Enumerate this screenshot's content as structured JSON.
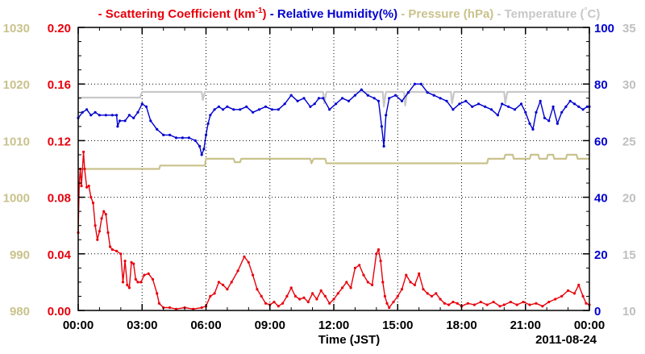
{
  "chart_data": {
    "type": "line",
    "title_parts": [
      {
        "text": "- Scattering Coefficient (km",
        "color": "#e8000b"
      },
      {
        "text": "-1",
        "color": "#e8000b",
        "sup": true
      },
      {
        "text": ") ",
        "color": "#e8000b"
      },
      {
        "text": "- Relative Humidity(%) ",
        "color": "#0000d0"
      },
      {
        "text": "- Pressure (hPa) ",
        "color": "#c9c28c"
      },
      {
        "text": "- Temperature (",
        "color": "#c8c8c8"
      },
      {
        "text": "°",
        "color": "#c8c8c8",
        "sup": true
      },
      {
        "text": "C)",
        "color": "#c8c8c8"
      }
    ],
    "xlabel": "Time (JST)",
    "date_label": "2011-08-24",
    "x_ticks": [
      "00:00",
      "03:00",
      "06:00",
      "09:00",
      "12:00",
      "15:00",
      "18:00",
      "21:00",
      "00:00"
    ],
    "xlim_hours": [
      0,
      24
    ],
    "grid": true,
    "axes": {
      "pressure": {
        "ticks": [
          "980",
          "990",
          "1000",
          "1010",
          "1020",
          "1030"
        ],
        "range": [
          980,
          1030
        ],
        "color": "#c9c28c"
      },
      "scattering": {
        "ticks": [
          "0.00",
          "0.04",
          "0.08",
          "0.12",
          "0.16",
          "0.20"
        ],
        "range": [
          0,
          0.2
        ],
        "color": "#e8000b"
      },
      "humidity": {
        "ticks": [
          "0",
          "20",
          "40",
          "60",
          "80",
          "100"
        ],
        "range": [
          0,
          100
        ],
        "color": "#0000d0"
      },
      "temperature": {
        "ticks": [
          "10",
          "15",
          "20",
          "25",
          "30",
          "35"
        ],
        "range": [
          10,
          35
        ],
        "color": "#bfbfbf"
      }
    },
    "series": [
      {
        "name": "Temperature (°C)",
        "axis": "temperature",
        "color": "#c8c8c8",
        "markers": false,
        "points": [
          [
            0,
            28.8
          ],
          [
            2.9,
            28.8
          ],
          [
            3.0,
            29.3
          ],
          [
            5.8,
            29.3
          ],
          [
            5.85,
            28.6
          ],
          [
            5.95,
            29.3
          ],
          [
            11.5,
            29.3
          ],
          [
            11.55,
            28.3
          ],
          [
            11.65,
            29.3
          ],
          [
            14.3,
            29.3
          ],
          [
            14.35,
            28.0
          ],
          [
            14.45,
            29.3
          ],
          [
            15.3,
            29.3
          ],
          [
            15.35,
            28.1
          ],
          [
            15.45,
            29.3
          ],
          [
            17.5,
            29.3
          ],
          [
            17.55,
            28.3
          ],
          [
            17.65,
            29.3
          ],
          [
            20.0,
            29.3
          ],
          [
            20.05,
            28.3
          ],
          [
            20.15,
            29.3
          ],
          [
            24,
            29.3
          ]
        ]
      },
      {
        "name": "Pressure (hPa)",
        "axis": "pressure",
        "color": "#c9c28c",
        "markers": false,
        "points": [
          [
            0,
            1005
          ],
          [
            3.8,
            1005
          ],
          [
            3.85,
            1005.6
          ],
          [
            5.95,
            1005.6
          ],
          [
            6.0,
            1006.8
          ],
          [
            7.3,
            1006.8
          ],
          [
            7.35,
            1006.2
          ],
          [
            7.6,
            1006.2
          ],
          [
            7.65,
            1006.8
          ],
          [
            10.9,
            1006.8
          ],
          [
            10.95,
            1006.0
          ],
          [
            11.05,
            1006.8
          ],
          [
            11.6,
            1006.8
          ],
          [
            11.65,
            1006.0
          ],
          [
            19.2,
            1006.0
          ],
          [
            19.25,
            1006.8
          ],
          [
            20.0,
            1006.8
          ],
          [
            20.05,
            1007.5
          ],
          [
            20.4,
            1007.5
          ],
          [
            20.45,
            1006.8
          ],
          [
            21.2,
            1006.8
          ],
          [
            21.25,
            1007.5
          ],
          [
            21.6,
            1007.5
          ],
          [
            21.65,
            1006.8
          ],
          [
            22.0,
            1006.8
          ],
          [
            22.05,
            1007.5
          ],
          [
            22.3,
            1007.5
          ],
          [
            22.35,
            1006.8
          ],
          [
            22.9,
            1006.8
          ],
          [
            22.95,
            1007.5
          ],
          [
            23.4,
            1007.5
          ],
          [
            23.45,
            1006.8
          ],
          [
            24,
            1006.8
          ]
        ]
      },
      {
        "name": "Relative Humidity(%)",
        "axis": "humidity",
        "color": "#0000d0",
        "markers": true,
        "points": [
          [
            0,
            68
          ],
          [
            0.2,
            70
          ],
          [
            0.4,
            71
          ],
          [
            0.6,
            69
          ],
          [
            0.8,
            70
          ],
          [
            1.0,
            69
          ],
          [
            1.3,
            69
          ],
          [
            1.6,
            69
          ],
          [
            1.8,
            69
          ],
          [
            1.85,
            65
          ],
          [
            1.95,
            67
          ],
          [
            2.2,
            67
          ],
          [
            2.4,
            69
          ],
          [
            2.6,
            68
          ],
          [
            2.8,
            70
          ],
          [
            3.0,
            73
          ],
          [
            3.2,
            72
          ],
          [
            3.4,
            67
          ],
          [
            3.7,
            64
          ],
          [
            4.0,
            62
          ],
          [
            4.3,
            62
          ],
          [
            4.6,
            61
          ],
          [
            4.9,
            61
          ],
          [
            5.2,
            61
          ],
          [
            5.5,
            60
          ],
          [
            5.7,
            58
          ],
          [
            5.8,
            55
          ],
          [
            5.9,
            57
          ],
          [
            6.0,
            62
          ],
          [
            6.1,
            66
          ],
          [
            6.2,
            69
          ],
          [
            6.4,
            71
          ],
          [
            6.6,
            72
          ],
          [
            6.8,
            71
          ],
          [
            7.0,
            72
          ],
          [
            7.3,
            71
          ],
          [
            7.6,
            71
          ],
          [
            7.9,
            72
          ],
          [
            8.2,
            70
          ],
          [
            8.5,
            71
          ],
          [
            8.8,
            72
          ],
          [
            9.1,
            71
          ],
          [
            9.4,
            71
          ],
          [
            9.7,
            73
          ],
          [
            10.0,
            76
          ],
          [
            10.3,
            74
          ],
          [
            10.6,
            75
          ],
          [
            10.9,
            72
          ],
          [
            11.1,
            73
          ],
          [
            11.3,
            75
          ],
          [
            11.5,
            75
          ],
          [
            11.8,
            71
          ],
          [
            12.1,
            73
          ],
          [
            12.4,
            75
          ],
          [
            12.7,
            74
          ],
          [
            13.0,
            76
          ],
          [
            13.3,
            78
          ],
          [
            13.6,
            76
          ],
          [
            13.9,
            75
          ],
          [
            14.1,
            74
          ],
          [
            14.25,
            65
          ],
          [
            14.35,
            58
          ],
          [
            14.45,
            69
          ],
          [
            14.6,
            75
          ],
          [
            14.9,
            76
          ],
          [
            15.2,
            74
          ],
          [
            15.5,
            77
          ],
          [
            15.8,
            80
          ],
          [
            16.1,
            80
          ],
          [
            16.4,
            77
          ],
          [
            16.7,
            76
          ],
          [
            17.0,
            75
          ],
          [
            17.3,
            74
          ],
          [
            17.6,
            71
          ],
          [
            17.9,
            73
          ],
          [
            18.2,
            74
          ],
          [
            18.5,
            72
          ],
          [
            18.8,
            73
          ],
          [
            19.1,
            72
          ],
          [
            19.4,
            71
          ],
          [
            19.7,
            69
          ],
          [
            19.9,
            73
          ],
          [
            20.2,
            72
          ],
          [
            20.5,
            71
          ],
          [
            20.8,
            73
          ],
          [
            21.0,
            70
          ],
          [
            21.2,
            66
          ],
          [
            21.35,
            64
          ],
          [
            21.5,
            70
          ],
          [
            21.7,
            74
          ],
          [
            21.9,
            68
          ],
          [
            22.1,
            67
          ],
          [
            22.3,
            72
          ],
          [
            22.5,
            66
          ],
          [
            22.7,
            70
          ],
          [
            22.9,
            72
          ],
          [
            23.1,
            74
          ],
          [
            23.3,
            73
          ],
          [
            23.5,
            72
          ],
          [
            23.7,
            71
          ],
          [
            23.9,
            72
          ],
          [
            24,
            72
          ]
        ]
      },
      {
        "name": "Scattering Coefficient (km-1)",
        "axis": "scattering",
        "color": "#e8000b",
        "markers": true,
        "points": [
          [
            0,
            0.055
          ],
          [
            0.05,
            0.09
          ],
          [
            0.1,
            0.1
          ],
          [
            0.15,
            0.088
          ],
          [
            0.25,
            0.112
          ],
          [
            0.3,
            0.1
          ],
          [
            0.4,
            0.087
          ],
          [
            0.5,
            0.088
          ],
          [
            0.6,
            0.08
          ],
          [
            0.7,
            0.076
          ],
          [
            0.8,
            0.06
          ],
          [
            0.9,
            0.05
          ],
          [
            1.0,
            0.056
          ],
          [
            1.1,
            0.065
          ],
          [
            1.2,
            0.07
          ],
          [
            1.3,
            0.068
          ],
          [
            1.4,
            0.055
          ],
          [
            1.5,
            0.045
          ],
          [
            1.6,
            0.043
          ],
          [
            1.8,
            0.042
          ],
          [
            2.0,
            0.04
          ],
          [
            2.1,
            0.02
          ],
          [
            2.2,
            0.035
          ],
          [
            2.3,
            0.018
          ],
          [
            2.4,
            0.016
          ],
          [
            2.5,
            0.034
          ],
          [
            2.6,
            0.033
          ],
          [
            2.7,
            0.022
          ],
          [
            2.8,
            0.02
          ],
          [
            2.95,
            0.02
          ],
          [
            3.1,
            0.025
          ],
          [
            3.3,
            0.026
          ],
          [
            3.5,
            0.022
          ],
          [
            3.7,
            0.012
          ],
          [
            3.8,
            0.005
          ],
          [
            4.0,
            0.002
          ],
          [
            4.3,
            0.002
          ],
          [
            4.6,
            0.001
          ],
          [
            5.0,
            0.002
          ],
          [
            5.4,
            0.001
          ],
          [
            5.8,
            0.002
          ],
          [
            6.0,
            0.003
          ],
          [
            6.2,
            0.01
          ],
          [
            6.4,
            0.012
          ],
          [
            6.6,
            0.02
          ],
          [
            6.8,
            0.018
          ],
          [
            7.0,
            0.015
          ],
          [
            7.2,
            0.02
          ],
          [
            7.5,
            0.028
          ],
          [
            7.8,
            0.038
          ],
          [
            8.0,
            0.034
          ],
          [
            8.2,
            0.025
          ],
          [
            8.4,
            0.015
          ],
          [
            8.6,
            0.01
          ],
          [
            8.8,
            0.005
          ],
          [
            9.0,
            0.004
          ],
          [
            9.2,
            0.006
          ],
          [
            9.4,
            0.003
          ],
          [
            9.6,
            0.005
          ],
          [
            9.8,
            0.01
          ],
          [
            10.0,
            0.016
          ],
          [
            10.2,
            0.01
          ],
          [
            10.4,
            0.008
          ],
          [
            10.6,
            0.009
          ],
          [
            10.8,
            0.006
          ],
          [
            11.0,
            0.012
          ],
          [
            11.2,
            0.008
          ],
          [
            11.4,
            0.014
          ],
          [
            11.6,
            0.01
          ],
          [
            11.8,
            0.005
          ],
          [
            12.0,
            0.008
          ],
          [
            12.2,
            0.012
          ],
          [
            12.4,
            0.016
          ],
          [
            12.6,
            0.02
          ],
          [
            12.8,
            0.016
          ],
          [
            13.0,
            0.03
          ],
          [
            13.2,
            0.032
          ],
          [
            13.4,
            0.025
          ],
          [
            13.6,
            0.02
          ],
          [
            13.8,
            0.018
          ],
          [
            14.0,
            0.04
          ],
          [
            14.1,
            0.043
          ],
          [
            14.2,
            0.035
          ],
          [
            14.3,
            0.02
          ],
          [
            14.4,
            0.01
          ],
          [
            14.5,
            0.005
          ],
          [
            14.6,
            0.002
          ],
          [
            14.8,
            0.006
          ],
          [
            15.0,
            0.01
          ],
          [
            15.2,
            0.015
          ],
          [
            15.4,
            0.025
          ],
          [
            15.6,
            0.02
          ],
          [
            15.8,
            0.018
          ],
          [
            16.0,
            0.026
          ],
          [
            16.2,
            0.015
          ],
          [
            16.4,
            0.012
          ],
          [
            16.6,
            0.01
          ],
          [
            16.8,
            0.012
          ],
          [
            17.0,
            0.008
          ],
          [
            17.2,
            0.005
          ],
          [
            17.4,
            0.004
          ],
          [
            17.6,
            0.006
          ],
          [
            17.8,
            0.005
          ],
          [
            18.0,
            0.003
          ],
          [
            18.3,
            0.005
          ],
          [
            18.6,
            0.004
          ],
          [
            18.9,
            0.006
          ],
          [
            19.2,
            0.004
          ],
          [
            19.5,
            0.006
          ],
          [
            19.8,
            0.003
          ],
          [
            20.0,
            0.004
          ],
          [
            20.3,
            0.006
          ],
          [
            20.6,
            0.004
          ],
          [
            20.9,
            0.006
          ],
          [
            21.2,
            0.004
          ],
          [
            21.5,
            0.005
          ],
          [
            21.8,
            0.003
          ],
          [
            22.1,
            0.006
          ],
          [
            22.4,
            0.008
          ],
          [
            22.7,
            0.01
          ],
          [
            23.0,
            0.014
          ],
          [
            23.3,
            0.012
          ],
          [
            23.5,
            0.018
          ],
          [
            23.7,
            0.01
          ],
          [
            23.85,
            0.005
          ],
          [
            24,
            0.004
          ]
        ]
      }
    ]
  }
}
